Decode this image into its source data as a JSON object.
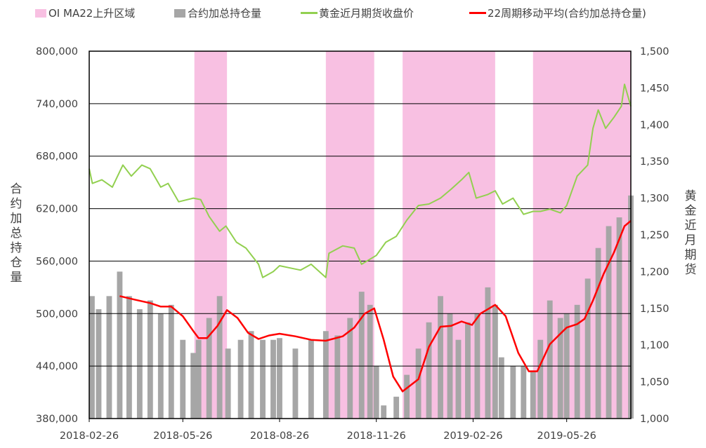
{
  "legend": {
    "oi_rising": "OI MA22上升区域",
    "open_interest": "合约加总持仓量",
    "gold_price": "黄金近月期货收盘价",
    "ma22": "22周期移动平均(合约加总持仓量)"
  },
  "colors": {
    "shade": "#f8c0e2",
    "bars": "#a6a6a6",
    "gold_line": "#92d050",
    "ma_line": "#ff0000",
    "axis": "#000000",
    "grid": "#000000"
  },
  "chart_data": {
    "type": "bar+line",
    "title": "",
    "ylabel_left": "合约加总持仓量",
    "ylabel_right": "黄金近月期货",
    "ylim_left": [
      380000,
      800000
    ],
    "ylim_right": [
      1000,
      1500
    ],
    "left_ticks": [
      "380,000",
      "440,000",
      "500,000",
      "560,000",
      "620,000",
      "680,000",
      "740,000",
      "800,000"
    ],
    "right_ticks": [
      "1,000",
      "1,050",
      "1,100",
      "1,150",
      "1,200",
      "1,250",
      "1,300",
      "1,350",
      "1,400",
      "1,450",
      "1,500"
    ],
    "x_range": [
      "2018-02-26",
      "2019-07-26"
    ],
    "x_ticks": [
      "2018-02-26",
      "2018-05-26",
      "2018-08-26",
      "2018-11-26",
      "2019-02-26",
      "2019-05-26"
    ],
    "shaded_periods": [
      [
        "2018-06-06",
        "2018-07-07"
      ],
      [
        "2018-10-09",
        "2018-11-24"
      ],
      [
        "2018-12-21",
        "2019-03-19"
      ],
      [
        "2019-04-24",
        "2019-07-26"
      ]
    ],
    "series": [
      {
        "name": "合约加总持仓量",
        "kind": "bar",
        "axis": "left",
        "points": [
          [
            "2018-02-26",
            520000
          ],
          [
            "2018-03-07",
            505000
          ],
          [
            "2018-03-17",
            520000
          ],
          [
            "2018-03-27",
            548000
          ],
          [
            "2018-04-05",
            520000
          ],
          [
            "2018-04-15",
            505000
          ],
          [
            "2018-04-25",
            515000
          ],
          [
            "2018-05-05",
            500000
          ],
          [
            "2018-05-15",
            510000
          ],
          [
            "2018-05-26",
            470000
          ],
          [
            "2018-06-05",
            455000
          ],
          [
            "2018-06-10",
            470000
          ],
          [
            "2018-06-20",
            495000
          ],
          [
            "2018-06-30",
            520000
          ],
          [
            "2018-07-08",
            460000
          ],
          [
            "2018-07-20",
            470000
          ],
          [
            "2018-07-30",
            480000
          ],
          [
            "2018-08-10",
            470000
          ],
          [
            "2018-08-20",
            470000
          ],
          [
            "2018-08-26",
            472000
          ],
          [
            "2018-09-10",
            460000
          ],
          [
            "2018-09-25",
            470000
          ],
          [
            "2018-10-09",
            480000
          ],
          [
            "2018-10-20",
            475000
          ],
          [
            "2018-11-01",
            495000
          ],
          [
            "2018-11-12",
            525000
          ],
          [
            "2018-11-20",
            510000
          ],
          [
            "2018-11-26",
            440000
          ],
          [
            "2018-12-03",
            395000
          ],
          [
            "2018-12-15",
            405000
          ],
          [
            "2018-12-25",
            430000
          ],
          [
            "2019-01-05",
            460000
          ],
          [
            "2019-01-15",
            490000
          ],
          [
            "2019-01-26",
            520000
          ],
          [
            "2019-02-04",
            500000
          ],
          [
            "2019-02-12",
            470000
          ],
          [
            "2019-02-21",
            490000
          ],
          [
            "2019-03-02",
            500000
          ],
          [
            "2019-03-12",
            530000
          ],
          [
            "2019-03-19",
            510000
          ],
          [
            "2019-03-25",
            450000
          ],
          [
            "2019-04-05",
            440000
          ],
          [
            "2019-04-15",
            440000
          ],
          [
            "2019-04-24",
            435000
          ],
          [
            "2019-05-01",
            470000
          ],
          [
            "2019-05-10",
            515000
          ],
          [
            "2019-05-20",
            495000
          ],
          [
            "2019-05-26",
            500000
          ],
          [
            "2019-06-05",
            510000
          ],
          [
            "2019-06-15",
            540000
          ],
          [
            "2019-06-25",
            575000
          ],
          [
            "2019-07-05",
            600000
          ],
          [
            "2019-07-15",
            610000
          ],
          [
            "2019-07-26",
            635000
          ]
        ]
      },
      {
        "name": "黄金近月期货收盘价",
        "kind": "line",
        "axis": "right",
        "points": [
          [
            "2018-02-26",
            1340
          ],
          [
            "2018-03-01",
            1320
          ],
          [
            "2018-03-10",
            1325
          ],
          [
            "2018-03-20",
            1315
          ],
          [
            "2018-03-30",
            1345
          ],
          [
            "2018-04-07",
            1330
          ],
          [
            "2018-04-17",
            1345
          ],
          [
            "2018-04-25",
            1340
          ],
          [
            "2018-05-05",
            1315
          ],
          [
            "2018-05-12",
            1320
          ],
          [
            "2018-05-22",
            1295
          ],
          [
            "2018-06-05",
            1300
          ],
          [
            "2018-06-12",
            1298
          ],
          [
            "2018-06-20",
            1275
          ],
          [
            "2018-06-30",
            1255
          ],
          [
            "2018-07-06",
            1262
          ],
          [
            "2018-07-16",
            1240
          ],
          [
            "2018-07-25",
            1232
          ],
          [
            "2018-08-06",
            1210
          ],
          [
            "2018-08-10",
            1192
          ],
          [
            "2018-08-20",
            1200
          ],
          [
            "2018-08-26",
            1208
          ],
          [
            "2018-09-05",
            1205
          ],
          [
            "2018-09-15",
            1202
          ],
          [
            "2018-09-25",
            1210
          ],
          [
            "2018-10-09",
            1192
          ],
          [
            "2018-10-12",
            1225
          ],
          [
            "2018-10-25",
            1235
          ],
          [
            "2018-11-05",
            1232
          ],
          [
            "2018-11-12",
            1210
          ],
          [
            "2018-11-26",
            1222
          ],
          [
            "2018-12-05",
            1240
          ],
          [
            "2018-12-15",
            1248
          ],
          [
            "2018-12-25",
            1270
          ],
          [
            "2019-01-05",
            1290
          ],
          [
            "2019-01-15",
            1292
          ],
          [
            "2019-01-26",
            1300
          ],
          [
            "2019-02-05",
            1312
          ],
          [
            "2019-02-15",
            1325
          ],
          [
            "2019-02-22",
            1335
          ],
          [
            "2019-03-01",
            1300
          ],
          [
            "2019-03-12",
            1305
          ],
          [
            "2019-03-19",
            1310
          ],
          [
            "2019-03-26",
            1292
          ],
          [
            "2019-04-05",
            1300
          ],
          [
            "2019-04-15",
            1278
          ],
          [
            "2019-04-24",
            1282
          ],
          [
            "2019-05-01",
            1282
          ],
          [
            "2019-05-10",
            1285
          ],
          [
            "2019-05-20",
            1280
          ],
          [
            "2019-05-26",
            1290
          ],
          [
            "2019-06-05",
            1330
          ],
          [
            "2019-06-15",
            1345
          ],
          [
            "2019-06-20",
            1395
          ],
          [
            "2019-06-25",
            1420
          ],
          [
            "2019-07-02",
            1395
          ],
          [
            "2019-07-10",
            1410
          ],
          [
            "2019-07-17",
            1425
          ],
          [
            "2019-07-20",
            1455
          ],
          [
            "2019-07-26",
            1425
          ]
        ]
      },
      {
        "name": "22周期移动平均(合约加总持仓量)",
        "kind": "line",
        "axis": "left",
        "points": [
          [
            "2018-03-27",
            520000
          ],
          [
            "2018-04-10",
            516000
          ],
          [
            "2018-04-25",
            512000
          ],
          [
            "2018-05-05",
            508000
          ],
          [
            "2018-05-15",
            508000
          ],
          [
            "2018-05-26",
            497000
          ],
          [
            "2018-06-05",
            480000
          ],
          [
            "2018-06-10",
            472000
          ],
          [
            "2018-06-18",
            472000
          ],
          [
            "2018-06-28",
            486000
          ],
          [
            "2018-07-07",
            504000
          ],
          [
            "2018-07-17",
            495000
          ],
          [
            "2018-07-27",
            478000
          ],
          [
            "2018-08-06",
            471000
          ],
          [
            "2018-08-16",
            475000
          ],
          [
            "2018-08-26",
            477000
          ],
          [
            "2018-09-10",
            474000
          ],
          [
            "2018-09-25",
            470000
          ],
          [
            "2018-10-09",
            469000
          ],
          [
            "2018-10-25",
            474000
          ],
          [
            "2018-11-05",
            484000
          ],
          [
            "2018-11-15",
            500000
          ],
          [
            "2018-11-24",
            506000
          ],
          [
            "2018-12-03",
            470000
          ],
          [
            "2018-12-12",
            428000
          ],
          [
            "2018-12-21",
            411000
          ],
          [
            "2019-01-05",
            425000
          ],
          [
            "2019-01-15",
            462000
          ],
          [
            "2019-01-26",
            485000
          ],
          [
            "2019-02-05",
            486000
          ],
          [
            "2019-02-15",
            491000
          ],
          [
            "2019-02-25",
            487000
          ],
          [
            "2019-03-05",
            500000
          ],
          [
            "2019-03-19",
            510000
          ],
          [
            "2019-03-29",
            497000
          ],
          [
            "2019-04-10",
            455000
          ],
          [
            "2019-04-20",
            434000
          ],
          [
            "2019-04-28",
            434000
          ],
          [
            "2019-05-10",
            465000
          ],
          [
            "2019-05-20",
            477000
          ],
          [
            "2019-05-26",
            484000
          ],
          [
            "2019-06-05",
            488000
          ],
          [
            "2019-06-12",
            494000
          ],
          [
            "2019-06-20",
            515000
          ],
          [
            "2019-06-30",
            545000
          ],
          [
            "2019-07-10",
            570000
          ],
          [
            "2019-07-20",
            600000
          ],
          [
            "2019-07-26",
            606000
          ]
        ]
      }
    ]
  }
}
